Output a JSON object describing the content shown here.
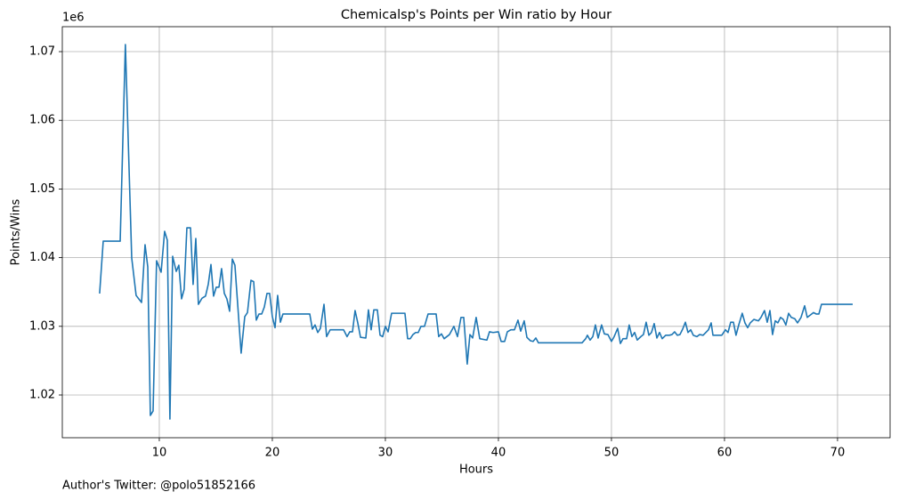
{
  "chart_data": {
    "type": "line",
    "title": "Chemicalsp's Points per Win ratio by Hour",
    "xlabel": "Hours",
    "ylabel": "Points/Wins",
    "y_offset_label": "1e6",
    "annotation": "Author's Twitter: @polo51852166",
    "color": "#1f77b4",
    "grid": true,
    "xlim": [
      1.42,
      74.65
    ],
    "ylim": [
      1.01378,
      1.07363
    ],
    "xticks": [
      10,
      20,
      30,
      40,
      50,
      60,
      70
    ],
    "yticks": [
      1.02,
      1.03,
      1.04,
      1.05,
      1.06,
      1.07
    ],
    "x": [
      4.72,
      5.04,
      6.54,
      7.0,
      7.56,
      7.95,
      8.43,
      8.74,
      8.98,
      9.21,
      9.45,
      9.76,
      10.16,
      10.47,
      10.71,
      10.94,
      11.18,
      11.5,
      11.73,
      11.97,
      12.2,
      12.44,
      12.76,
      12.99,
      13.23,
      13.46,
      13.78,
      14.09,
      14.33,
      14.57,
      14.8,
      15.04,
      15.28,
      15.51,
      15.75,
      15.98,
      16.22,
      16.46,
      16.69,
      17.24,
      17.56,
      17.8,
      18.11,
      18.35,
      18.58,
      18.82,
      19.06,
      19.29,
      19.53,
      19.76,
      20.0,
      20.24,
      20.47,
      20.71,
      20.94,
      23.31,
      23.54,
      23.78,
      24.02,
      24.25,
      24.57,
      24.8,
      25.12,
      26.3,
      26.61,
      26.85,
      27.09,
      27.32,
      27.56,
      27.8,
      28.27,
      28.5,
      28.74,
      28.98,
      29.29,
      29.53,
      29.76,
      30.0,
      30.24,
      30.55,
      31.73,
      31.97,
      32.2,
      32.44,
      32.68,
      32.91,
      33.15,
      33.46,
      33.78,
      34.49,
      34.72,
      34.96,
      35.2,
      35.67,
      36.06,
      36.38,
      36.69,
      36.93,
      37.24,
      37.48,
      37.72,
      38.03,
      38.35,
      38.98,
      39.21,
      39.53,
      40.0,
      40.24,
      40.55,
      40.79,
      41.1,
      41.42,
      41.73,
      41.97,
      42.28,
      42.52,
      42.83,
      43.07,
      43.31,
      43.54,
      47.4,
      47.72,
      47.87,
      48.11,
      48.35,
      48.58,
      48.82,
      49.13,
      49.37,
      49.69,
      50.0,
      50.24,
      50.55,
      50.79,
      51.02,
      51.34,
      51.57,
      51.81,
      52.05,
      52.28,
      52.6,
      52.83,
      53.07,
      53.31,
      53.54,
      53.78,
      54.02,
      54.25,
      54.49,
      54.8,
      55.12,
      55.35,
      55.59,
      55.83,
      56.06,
      56.3,
      56.54,
      56.77,
      57.01,
      57.24,
      57.56,
      57.8,
      58.11,
      58.35,
      58.58,
      58.82,
      58.98,
      59.76,
      60.08,
      60.31,
      60.55,
      60.79,
      61.02,
      61.26,
      61.57,
      61.81,
      62.05,
      62.28,
      62.6,
      63.0,
      63.23,
      63.54,
      63.78,
      64.02,
      64.25,
      64.49,
      64.72,
      64.96,
      65.2,
      65.43,
      65.67,
      65.91,
      66.22,
      66.46,
      66.77,
      67.09,
      67.32,
      67.64,
      67.87,
      68.11,
      68.35,
      68.58,
      71.34
    ],
    "values": [
      1.03477,
      1.04241,
      1.0424,
      1.07104,
      1.03995,
      1.0345,
      1.03347,
      1.04189,
      1.03865,
      1.01702,
      1.01767,
      1.03956,
      1.03788,
      1.04383,
      1.04254,
      1.0165,
      1.0402,
      1.038,
      1.0389,
      1.034,
      1.0354,
      1.04435,
      1.04435,
      1.0361,
      1.0428,
      1.0332,
      1.0341,
      1.0344,
      1.0361,
      1.039,
      1.0344,
      1.0357,
      1.0357,
      1.0384,
      1.0348,
      1.034,
      1.0322,
      1.0398,
      1.0389,
      1.0261,
      1.0314,
      1.032,
      1.0367,
      1.0365,
      1.0309,
      1.0318,
      1.0318,
      1.0328,
      1.0348,
      1.0348,
      1.0314,
      1.0298,
      1.0345,
      1.0306,
      1.0318,
      1.0318,
      1.0296,
      1.0302,
      1.0291,
      1.0297,
      1.0332,
      1.0285,
      1.0295,
      1.0295,
      1.0285,
      1.0292,
      1.0292,
      1.0323,
      1.0305,
      1.0284,
      1.0283,
      1.0324,
      1.0295,
      1.0324,
      1.0324,
      1.0287,
      1.0285,
      1.03,
      1.0292,
      1.0319,
      1.0319,
      1.0282,
      1.0282,
      1.0288,
      1.0291,
      1.0291,
      1.03,
      1.03,
      1.0318,
      1.0318,
      1.0285,
      1.0289,
      1.0282,
      1.0288,
      1.03,
      1.0285,
      1.0313,
      1.0313,
      1.0245,
      1.0288,
      1.0283,
      1.0313,
      1.0282,
      1.028,
      1.0292,
      1.0291,
      1.0292,
      1.0278,
      1.0278,
      1.0292,
      1.0295,
      1.0295,
      1.0309,
      1.0293,
      1.0308,
      1.0284,
      1.0279,
      1.0278,
      1.0283,
      1.0276,
      1.0276,
      1.0282,
      1.0287,
      1.028,
      1.0285,
      1.0302,
      1.0283,
      1.0302,
      1.0289,
      1.0288,
      1.0278,
      1.0285,
      1.0297,
      1.0275,
      1.0282,
      1.0282,
      1.0302,
      1.0285,
      1.0291,
      1.028,
      1.0285,
      1.0288,
      1.0306,
      1.0287,
      1.0291,
      1.0304,
      1.0283,
      1.0291,
      1.0282,
      1.0287,
      1.0287,
      1.0288,
      1.0292,
      1.0287,
      1.0288,
      1.0296,
      1.0306,
      1.0291,
      1.0295,
      1.0287,
      1.0285,
      1.0288,
      1.0287,
      1.0291,
      1.0295,
      1.0305,
      1.0287,
      1.0287,
      1.0295,
      1.0291,
      1.0306,
      1.0306,
      1.0287,
      1.0302,
      1.0319,
      1.0305,
      1.0298,
      1.0305,
      1.031,
      1.0308,
      1.0313,
      1.0323,
      1.0306,
      1.0323,
      1.0288,
      1.0308,
      1.0305,
      1.0313,
      1.031,
      1.0302,
      1.0319,
      1.0313,
      1.0311,
      1.0305,
      1.0313,
      1.033,
      1.0313,
      1.0317,
      1.032,
      1.0318,
      1.0318,
      1.0332,
      1.0332
    ]
  }
}
